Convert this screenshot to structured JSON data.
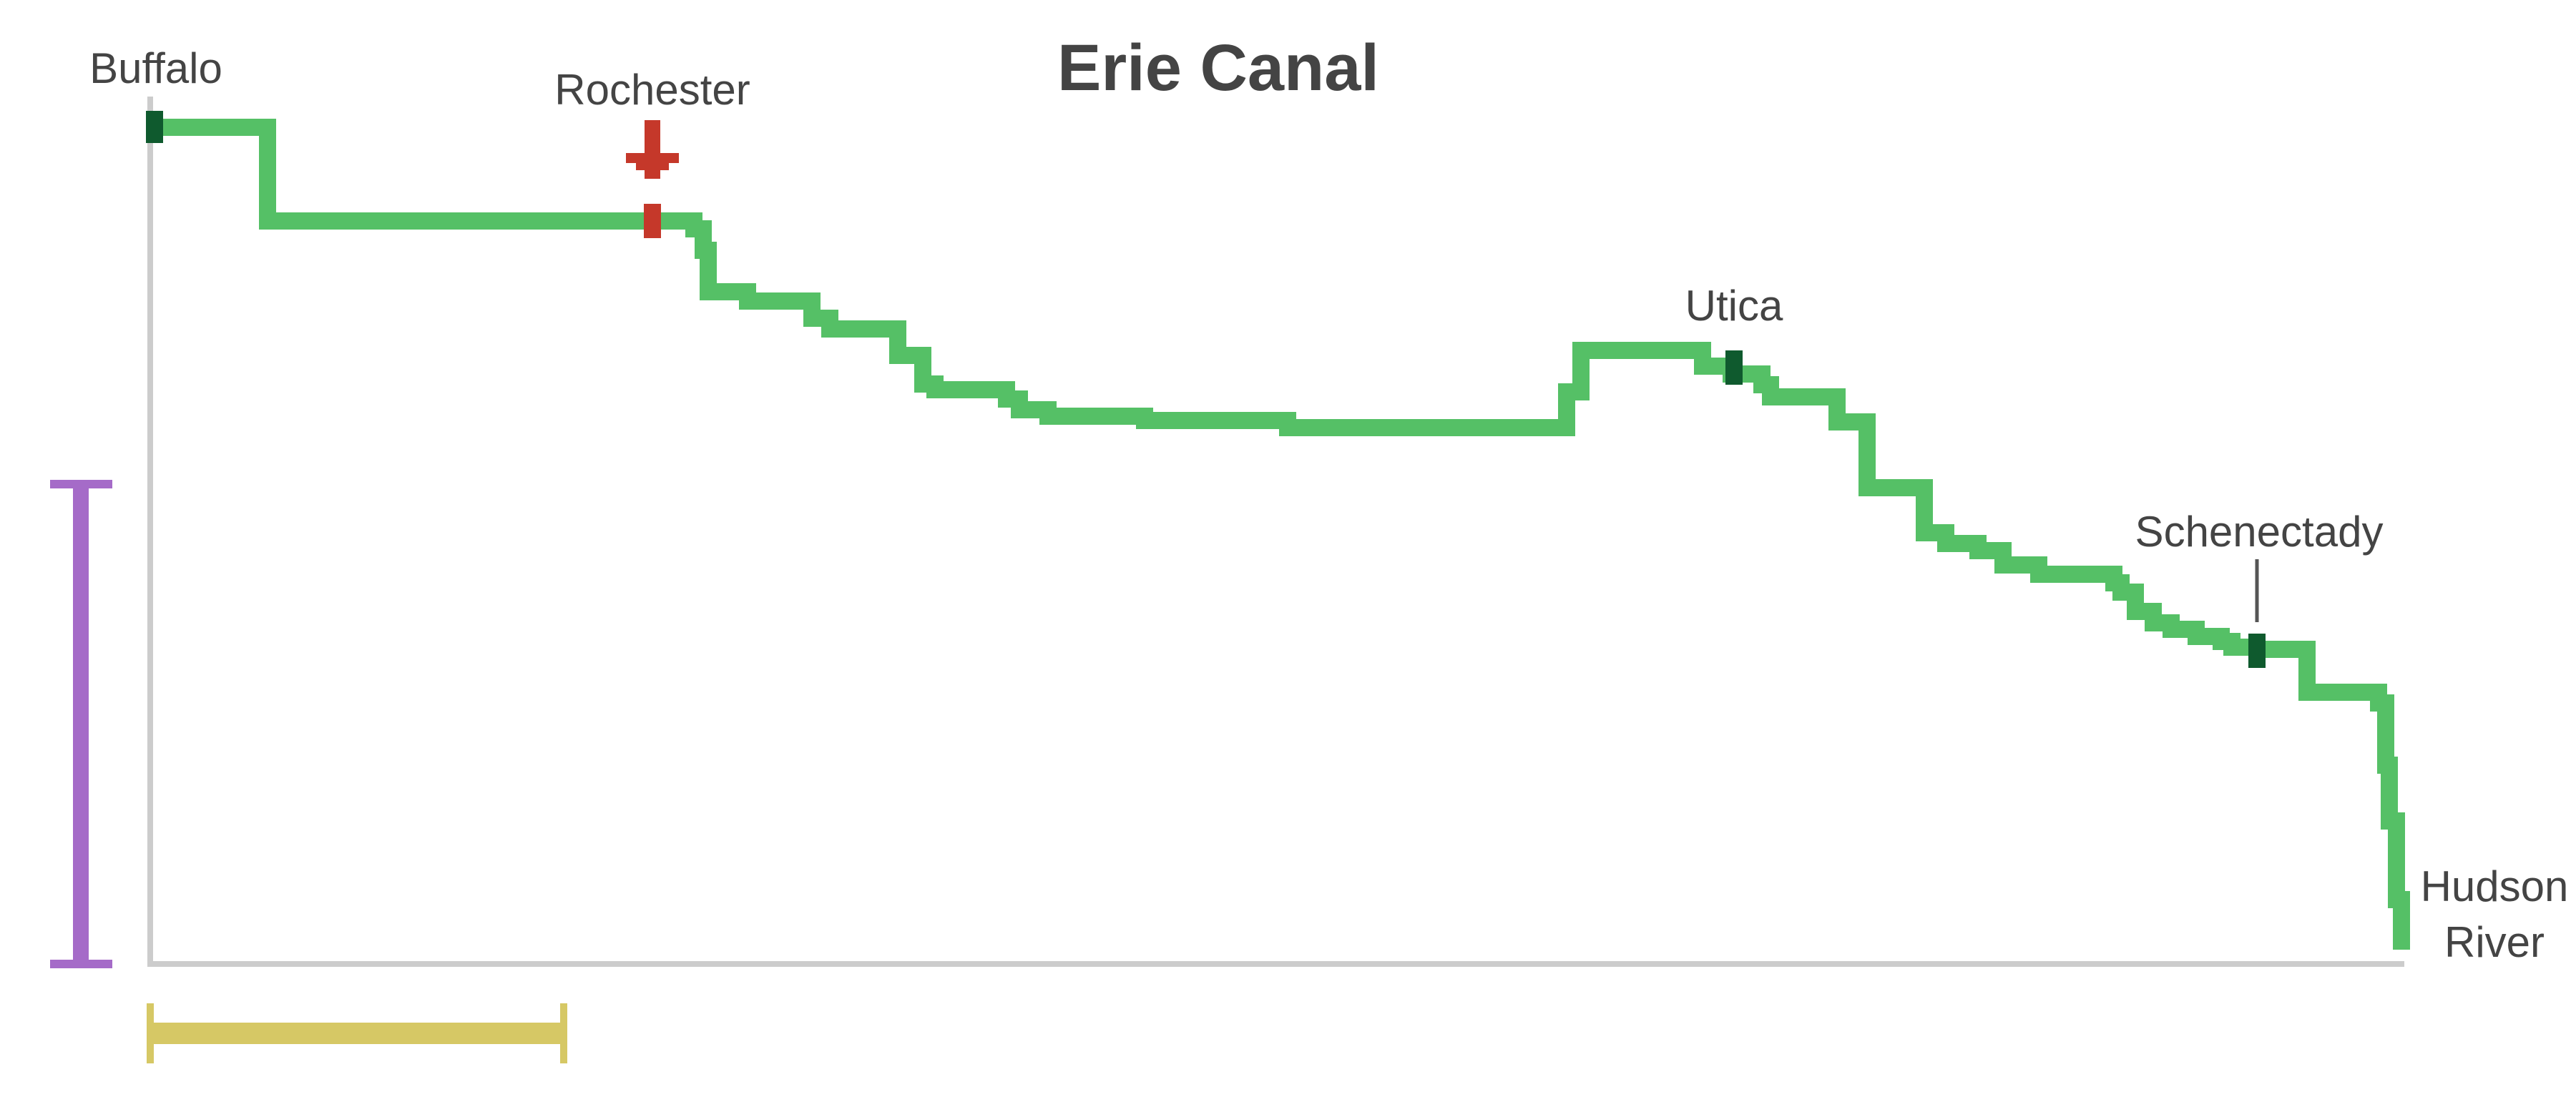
{
  "title": "Erie Canal",
  "colors": {
    "profile": "#55c066",
    "city_marker": "#0f5a2e",
    "highlight": "#c5382a",
    "axis": "#cccccc",
    "vertical_scale": "#a56bc8",
    "horizontal_scale": "#d6c865",
    "text": "#444444"
  },
  "places": {
    "buffalo": "Buffalo",
    "rochester": "Rochester",
    "utica": "Utica",
    "schenectady": "Schenectady",
    "hudson_line1": "Hudson",
    "hudson_line2": "River"
  },
  "icons": {
    "rochester_pointer": "down-arrow-icon"
  }
}
